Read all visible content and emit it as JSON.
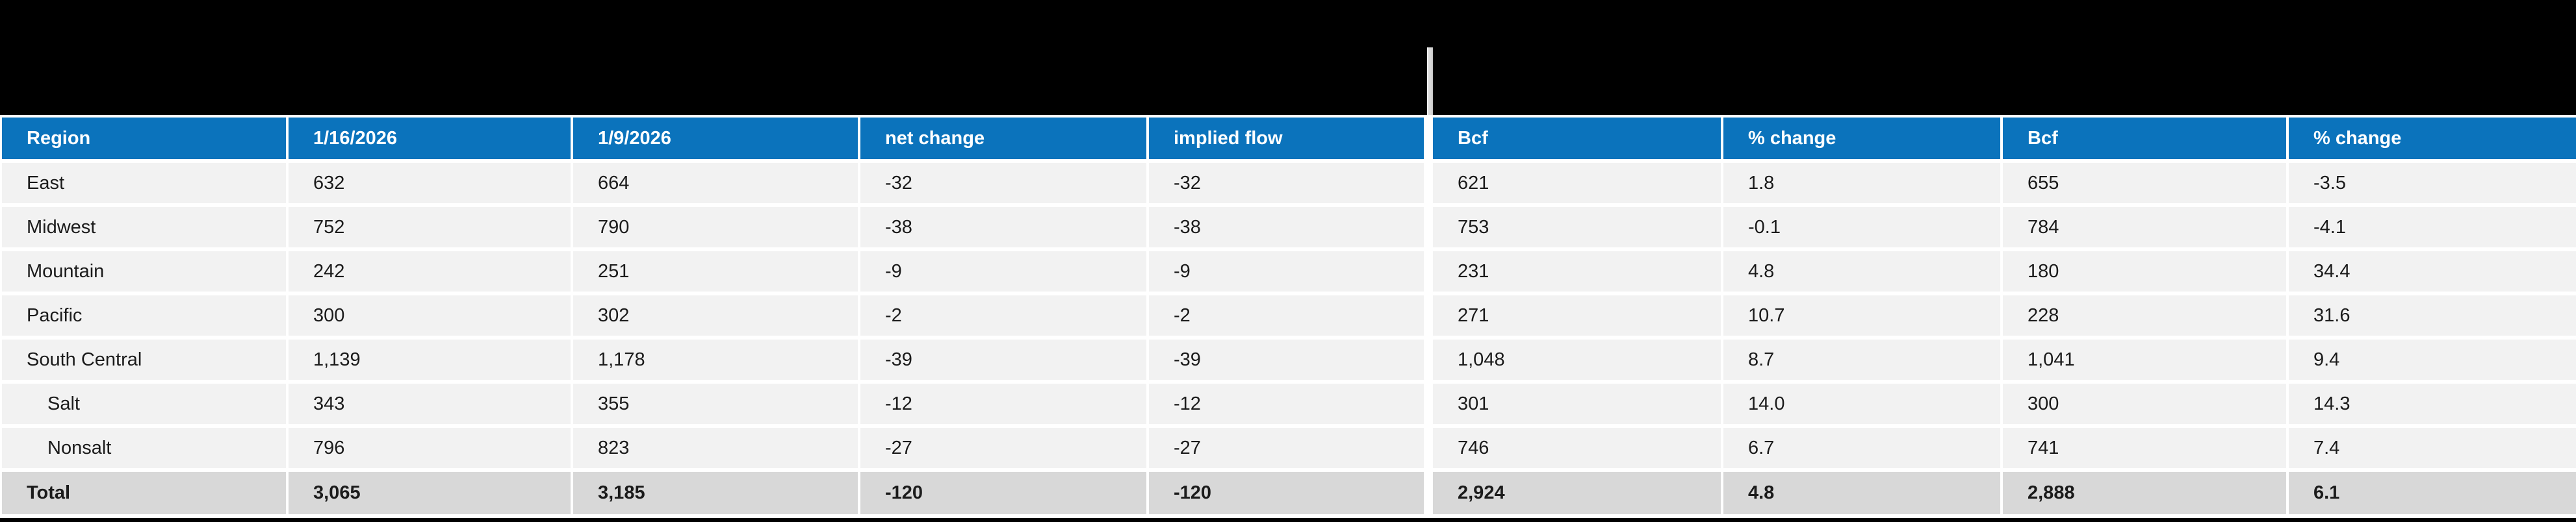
{
  "banner": {
    "description": "blacked-out title band",
    "divider_color": "#d9d9d9"
  },
  "colors": {
    "header_blue": "#0b73bc",
    "header_text": "#ffffff",
    "row_bg": "#f2f2f2",
    "total_row_bg": "#d8d8d8",
    "banner_bg": "#000000",
    "body_text": "#1b1b1b"
  },
  "table": {
    "columns": [
      "Region",
      "1/16/2026",
      "1/9/2026",
      "net change",
      "implied flow",
      "Bcf",
      "% change",
      "Bcf",
      "% change"
    ],
    "rows": [
      {
        "label": "East",
        "indent": false,
        "values": [
          "632",
          "664",
          "-32",
          "-32",
          "621",
          "1.8",
          "655",
          "-3.5"
        ]
      },
      {
        "label": "Midwest",
        "indent": false,
        "values": [
          "752",
          "790",
          "-38",
          "-38",
          "753",
          "-0.1",
          "784",
          "-4.1"
        ]
      },
      {
        "label": "Mountain",
        "indent": false,
        "values": [
          "242",
          "251",
          "-9",
          "-9",
          "231",
          "4.8",
          "180",
          "34.4"
        ]
      },
      {
        "label": "Pacific",
        "indent": false,
        "values": [
          "300",
          "302",
          "-2",
          "-2",
          "271",
          "10.7",
          "228",
          "31.6"
        ]
      },
      {
        "label": "South Central",
        "indent": false,
        "values": [
          "1,139",
          "1,178",
          "-39",
          "-39",
          "1,048",
          "8.7",
          "1,041",
          "9.4"
        ]
      },
      {
        "label": "Salt",
        "indent": true,
        "values": [
          "343",
          "355",
          "-12",
          "-12",
          "301",
          "14.0",
          "300",
          "14.3"
        ]
      },
      {
        "label": "Nonsalt",
        "indent": true,
        "values": [
          "796",
          "823",
          "-27",
          "-27",
          "746",
          "6.7",
          "741",
          "7.4"
        ]
      }
    ],
    "total": {
      "label": "Total",
      "values": [
        "3,065",
        "3,185",
        "-120",
        "-120",
        "2,924",
        "4.8",
        "2,888",
        "6.1"
      ]
    }
  },
  "chart_data": {
    "type": "table",
    "columns": [
      "Region",
      "1/16/2026",
      "1/9/2026",
      "net change",
      "implied flow",
      "Bcf",
      "% change",
      "Bcf",
      "% change"
    ],
    "column_groups_divider_after": "implied flow",
    "rows": [
      [
        "East",
        632,
        664,
        -32,
        -32,
        621,
        1.8,
        655,
        -3.5
      ],
      [
        "Midwest",
        752,
        790,
        -38,
        -38,
        753,
        -0.1,
        784,
        -4.1
      ],
      [
        "Mountain",
        242,
        251,
        -9,
        -9,
        231,
        4.8,
        180,
        34.4
      ],
      [
        "Pacific",
        300,
        302,
        -2,
        -2,
        271,
        10.7,
        228,
        31.6
      ],
      [
        "South Central",
        1139,
        1178,
        -39,
        -39,
        1048,
        8.7,
        1041,
        9.4
      ],
      [
        "Salt",
        343,
        355,
        -12,
        -12,
        301,
        14.0,
        300,
        14.3
      ],
      [
        "Nonsalt",
        796,
        823,
        -27,
        -27,
        746,
        6.7,
        741,
        7.4
      ]
    ],
    "total": [
      "Total",
      3065,
      3185,
      -120,
      -120,
      2924,
      4.8,
      2888,
      6.1
    ]
  }
}
